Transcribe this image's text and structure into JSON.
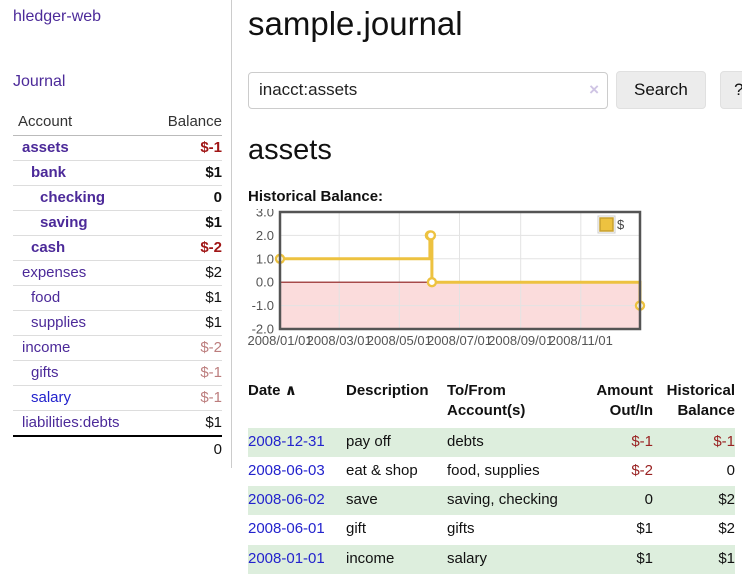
{
  "app": {
    "title": "hledger-web",
    "nav_journal": "Journal"
  },
  "sidebar": {
    "col_account": "Account",
    "col_balance": "Balance",
    "accounts": [
      {
        "name": "assets",
        "depth": 1,
        "bold": true,
        "link": "purple",
        "balance": "$-1",
        "balance_class": "bal-strong-neg"
      },
      {
        "name": "bank",
        "depth": 2,
        "bold": true,
        "link": "purple",
        "balance": "$1",
        "balance_class": "bal-strong"
      },
      {
        "name": "checking",
        "depth": 3,
        "bold": true,
        "link": "purple",
        "balance": "0",
        "balance_class": "bal-strong"
      },
      {
        "name": "saving",
        "depth": 3,
        "bold": true,
        "link": "purple",
        "balance": "$1",
        "balance_class": "bal-strong"
      },
      {
        "name": "cash",
        "depth": 2,
        "bold": true,
        "link": "purple",
        "balance": "$-2",
        "balance_class": "bal-strong-neg"
      },
      {
        "name": "expenses",
        "depth": 1,
        "bold": false,
        "link": "purple",
        "balance": "$2",
        "balance_class": "bal-plain"
      },
      {
        "name": "food",
        "depth": 2,
        "bold": false,
        "link": "purple",
        "balance": "$1",
        "balance_class": "bal-plain"
      },
      {
        "name": "supplies",
        "depth": 2,
        "bold": false,
        "link": "purple",
        "balance": "$1",
        "balance_class": "bal-plain"
      },
      {
        "name": "income",
        "depth": 1,
        "bold": false,
        "link": "purple",
        "balance": "$-2",
        "balance_class": "bal-rose"
      },
      {
        "name": "gifts",
        "depth": 2,
        "bold": false,
        "link": "purple",
        "balance": "$-1",
        "balance_class": "bal-rose"
      },
      {
        "name": "salary",
        "depth": 2,
        "bold": false,
        "link": "blue",
        "balance": "$-1",
        "balance_class": "bal-rose"
      },
      {
        "name": "liabilities:debts",
        "depth": 1,
        "bold": false,
        "link": "purple",
        "balance": "$1",
        "balance_class": "bal-plain"
      }
    ],
    "total": "0"
  },
  "header": {
    "title": "sample.journal"
  },
  "search": {
    "value": "inacct:assets",
    "clear_icon": "×",
    "button_label": "Search",
    "help_label": "?"
  },
  "register": {
    "heading": "assets",
    "chart_label": "Historical Balance:",
    "headers": {
      "date": "Date",
      "sort_icon": "∧",
      "description": "Description",
      "accounts": "To/From Account(s)",
      "amount": "Amount Out/In",
      "balance": "Historical Balance"
    },
    "rows": [
      {
        "date": "2008-12-31",
        "description": "pay off",
        "accounts": "debts",
        "amount": "$-1",
        "amount_neg": true,
        "balance": "$-1",
        "balance_neg": true,
        "shaded": true
      },
      {
        "date": "2008-06-03",
        "description": "eat & shop",
        "accounts": "food, supplies",
        "amount": "$-2",
        "amount_neg": true,
        "balance": "0",
        "balance_neg": false,
        "shaded": false
      },
      {
        "date": "2008-06-02",
        "description": "save",
        "accounts": "saving, checking",
        "amount": "0",
        "amount_neg": false,
        "balance": "$2",
        "balance_neg": false,
        "shaded": true
      },
      {
        "date": "2008-06-01",
        "description": "gift",
        "accounts": "gifts",
        "amount": "$1",
        "amount_neg": false,
        "balance": "$2",
        "balance_neg": false,
        "shaded": false
      },
      {
        "date": "2008-01-01",
        "description": "income",
        "accounts": "salary",
        "amount": "$1",
        "amount_neg": false,
        "balance": "$1",
        "balance_neg": false,
        "shaded": true
      }
    ]
  },
  "chart_data": {
    "type": "line",
    "title": "Historical Balance:",
    "step": true,
    "series": [
      {
        "name": "$",
        "color": "#edc240",
        "points": [
          [
            "2008-01-01",
            1
          ],
          [
            "2008-06-01",
            2
          ],
          [
            "2008-06-02",
            2
          ],
          [
            "2008-06-03",
            0
          ],
          [
            "2008-12-31",
            -1
          ]
        ]
      }
    ],
    "x_range": [
      "2008-01-01",
      "2008-12-31"
    ],
    "ylim": [
      -2,
      3
    ],
    "yticks": [
      3.0,
      2.0,
      1.0,
      0.0,
      -1.0,
      -2.0
    ],
    "xticks": [
      "2008/01/01",
      "2008/03/01",
      "2008/05/01",
      "2008/07/01",
      "2008/09/01",
      "2008/11/01"
    ],
    "grid": true,
    "legend_position": "top-right",
    "zero_line_color": "#8b1a1a",
    "negative_fill": "#fbdcdc",
    "marker_fill": "#ffffff",
    "border_color": "#545454",
    "grid_color": "#e3e3e3",
    "tick_color": "#545454"
  }
}
